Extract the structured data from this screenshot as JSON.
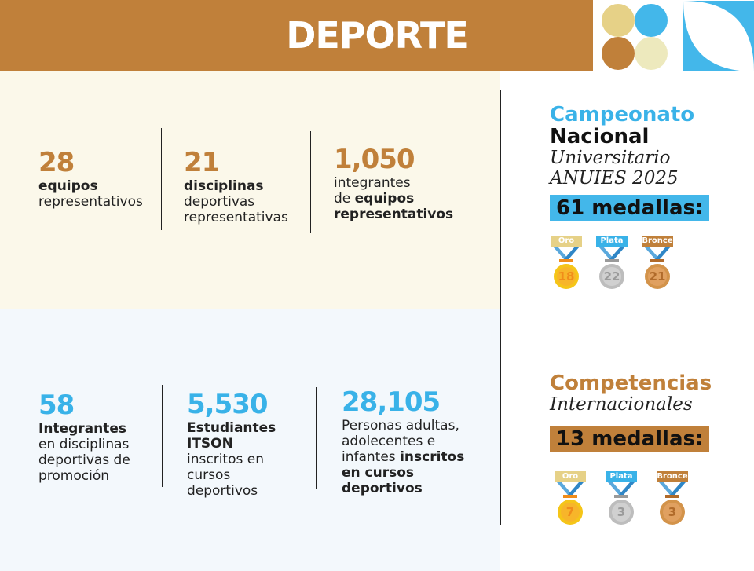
{
  "header": {
    "title": "DEPORTE"
  },
  "colors": {
    "brown": "#c0803a",
    "blue": "#39b2e8",
    "gold": "#e6d187",
    "cream": "#ede9bd"
  },
  "top_stats": [
    {
      "number": "28",
      "line1": "equipos",
      "line2": "representativos"
    },
    {
      "number": "21",
      "line1": "disciplinas",
      "line2": "deportivas",
      "line3": "representativas"
    },
    {
      "number": "1,050",
      "line1": "integrantes",
      "line2a": "de ",
      "line2b": "equipos",
      "line3": "representativos"
    }
  ],
  "bottom_stats": [
    {
      "number": "58",
      "line1": "Integrantes",
      "line2": "en disciplinas",
      "line3": "deportivas de",
      "line4": "promoción"
    },
    {
      "number": "5,530",
      "line1": "Estudiantes",
      "line2": "ITSON",
      "line3": "inscritos en",
      "line4": "cursos",
      "line5": "deportivos"
    },
    {
      "number": "28,105",
      "line1": "Personas adultas,",
      "line2": "adolecentes e",
      "line3a": "infantes ",
      "line3b": "inscritos",
      "line4": "en cursos",
      "line5": "deportivos"
    }
  ],
  "nacional": {
    "line1": "Campeonato",
    "line2": "Nacional",
    "line3": "Universitario",
    "line4": "ANUIES 2025",
    "total": "61 medallas:",
    "medals": [
      {
        "label": "Oro",
        "count": "18"
      },
      {
        "label": "Plata",
        "count": "22"
      },
      {
        "label": "Bronce",
        "count": "21"
      }
    ]
  },
  "internacional": {
    "line1": "Competencias",
    "line2": "Internacionales",
    "total": "13 medallas:",
    "medals": [
      {
        "label": "Oro",
        "count": "7"
      },
      {
        "label": "Plata",
        "count": "3"
      },
      {
        "label": "Bronce",
        "count": "3"
      }
    ]
  }
}
